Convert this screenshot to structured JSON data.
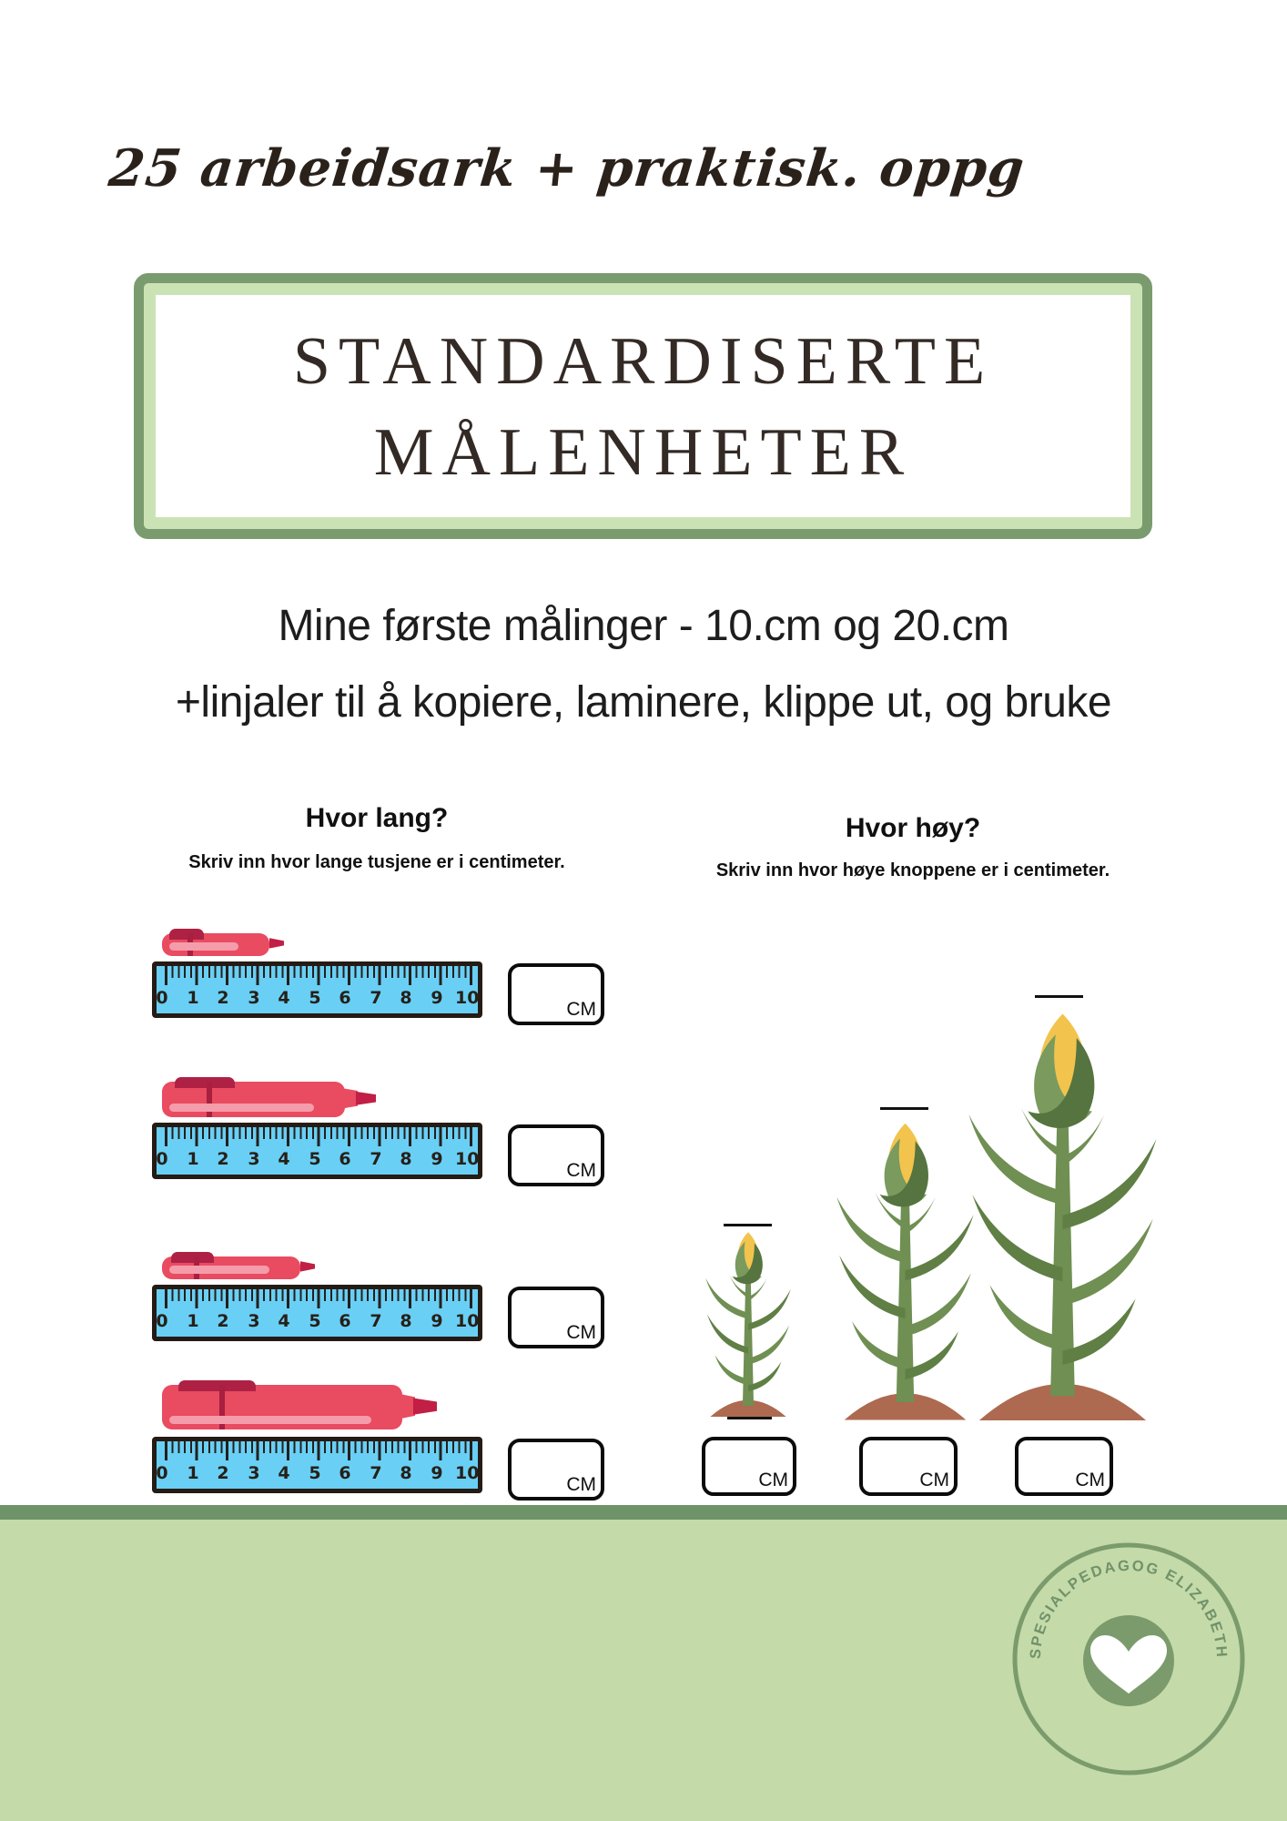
{
  "header": {
    "script_note": "25 arbeidsark + praktisk. oppg"
  },
  "title_box": {
    "line1": "STANDARDISERTE",
    "line2": "MÅLENHETER"
  },
  "intro": {
    "line1": "Mine første målinger - 10.cm og 20.cm",
    "line2": "+linjaler til å kopiere, laminere, klippe ut, og bruke"
  },
  "length_section": {
    "heading": "Hvor lang?",
    "instruction": "Skriv inn hvor lange tusjene er i centimeter.",
    "unit_label": "CM",
    "ruler_numbers": [
      "0",
      "1",
      "2",
      "3",
      "4",
      "5",
      "6",
      "7",
      "8",
      "9",
      "10"
    ],
    "rows": [
      {
        "item": "tusj",
        "marker_style": "slim",
        "length_cm": 4,
        "answer": ""
      },
      {
        "item": "tusj",
        "marker_style": "fat",
        "length_cm": 7,
        "answer": ""
      },
      {
        "item": "tusj",
        "marker_style": "slim",
        "length_cm": 5,
        "answer": ""
      },
      {
        "item": "tusj",
        "marker_style": "fat-large",
        "length_cm": 9,
        "answer": ""
      }
    ]
  },
  "height_section": {
    "heading": "Hvor høy?",
    "instruction": "Skriv inn hvor høye knoppene er i centimeter.",
    "unit_label": "CM",
    "plants": [
      {
        "item": "knopp",
        "size": "small",
        "answer": ""
      },
      {
        "item": "knopp",
        "size": "medium",
        "answer": ""
      },
      {
        "item": "knopp",
        "size": "tall",
        "answer": ""
      }
    ]
  },
  "footer": {
    "badge_text": "SPESIALPEDAGOG ELIZABETH",
    "heart_icon": "heart"
  },
  "colors": {
    "ruler_blue": "#69cff5",
    "ruler_border": "#241b15",
    "marker_red": "#e94b61",
    "marker_dark_red": "#ae2145",
    "marker_tip": "#c11f45",
    "marker_stripe": "#f59cab",
    "title_border_dark": "#7a9b6d",
    "title_border_light": "#cbe3b4",
    "footer_strip_green": "#6f9368",
    "footer_green": "#c4daa9",
    "badge_green": "#7b9b6d",
    "soil_brown": "#ad6a50",
    "plant_green": "#6f8f53",
    "bud_yellow": "#f2c44d"
  }
}
